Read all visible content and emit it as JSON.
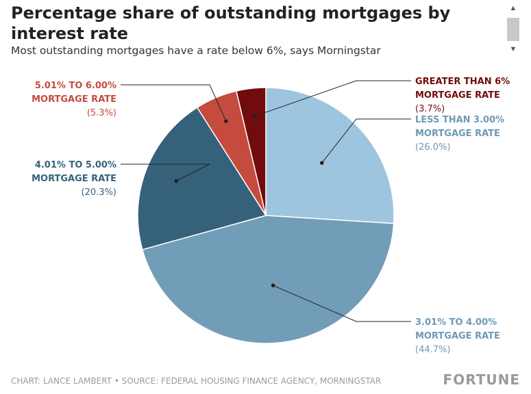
{
  "chart_data": {
    "type": "pie",
    "title": "Percentage share of outstanding mortgages by interest rate",
    "subtitle": "Most outstanding mortgages have a rate below 6%, says Morningstar",
    "slices": [
      {
        "label_line1": "LESS THAN 3.00%",
        "label_line2": "MORTGAGE RATE",
        "value": 26.0,
        "value_text": "(26.0%)",
        "color": "#9dc5df",
        "label_color": "#6f98b6"
      },
      {
        "label_line1": "3.01% TO 4.00%",
        "label_line2": "MORTGAGE RATE",
        "value": 44.7,
        "value_text": "(44.7%)",
        "color": "#729db8",
        "label_color": "#6f98b6"
      },
      {
        "label_line1": "4.01% TO 5.00%",
        "label_line2": "MORTGAGE RATE",
        "value": 20.3,
        "value_text": "(20.3%)",
        "color": "#36617a",
        "label_color": "#36617a"
      },
      {
        "label_line1": "5.01% TO 6.00%",
        "label_line2": "MORTGAGE RATE",
        "value": 5.3,
        "value_text": "(5.3%)",
        "color": "#c54b3e",
        "label_color": "#c54b3e"
      },
      {
        "label_line1": "GREATER THAN 6%",
        "label_line2": "MORTGAGE RATE",
        "value": 3.7,
        "value_text": "(3.7%)",
        "color": "#720b0b",
        "label_color": "#720b0b"
      }
    ],
    "start_angle": "12 o'clock, clockwise"
  },
  "footer": {
    "source": "CHART: LANCE LAMBERT • SOURCE: FEDERAL HOUSING FINANCE AGENCY, MORNINGSTAR",
    "logo": "FORTUNE"
  },
  "scrollbar": {
    "up_icon": "▲",
    "down_icon": "▼"
  }
}
